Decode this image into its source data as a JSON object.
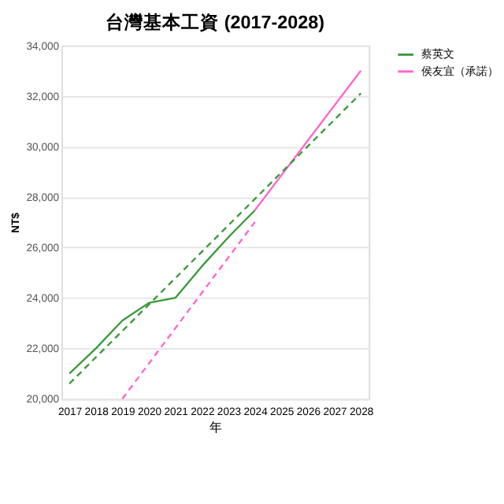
{
  "chart_data": {
    "type": "line",
    "title": "台灣基本工資 (2017-2028)",
    "xlabel": "年",
    "ylabel": "NT$",
    "categories": [
      "2017",
      "2018",
      "2019",
      "2020",
      "2021",
      "2022",
      "2023",
      "2024",
      "2025",
      "2026",
      "2027",
      "2028"
    ],
    "series": [
      {
        "name": "蔡英文",
        "color": "#3a9a3a",
        "line_style": "solid",
        "values": [
          21000,
          22000,
          23100,
          23800,
          24000,
          25250,
          26400,
          27470,
          null,
          null,
          null,
          null
        ]
      },
      {
        "name": "侯友宜（承諾）",
        "color": "#ff66cc",
        "line_style": "solid",
        "values": [
          null,
          null,
          null,
          null,
          null,
          null,
          null,
          27470,
          null,
          null,
          null,
          33000
        ]
      },
      {
        "type": "line",
        "color": "#3a9a3a",
        "line_style": "dashed",
        "values": [
          20600,
          null,
          null,
          null,
          null,
          null,
          null,
          null,
          null,
          null,
          null,
          32100
        ]
      },
      {
        "type": "line",
        "color": "#ff66cc",
        "line_style": "dashed",
        "values": [
          null,
          null,
          20000,
          null,
          null,
          null,
          null,
          27000,
          null,
          null,
          null,
          null
        ]
      }
    ],
    "ylim": [
      20000,
      34000
    ],
    "yticks": [
      {
        "value": 20000,
        "label": "20,000"
      },
      {
        "value": 22000,
        "label": "22,000"
      },
      {
        "value": 24000,
        "label": "24,000"
      },
      {
        "value": 26000,
        "label": "26,000"
      },
      {
        "value": 28000,
        "label": "28,000"
      },
      {
        "value": 30000,
        "label": "30,000"
      },
      {
        "value": 32000,
        "label": "32,000"
      },
      {
        "value": 34000,
        "label": "34,000"
      }
    ],
    "grid": "y",
    "legend": "right",
    "marker": "none"
  }
}
